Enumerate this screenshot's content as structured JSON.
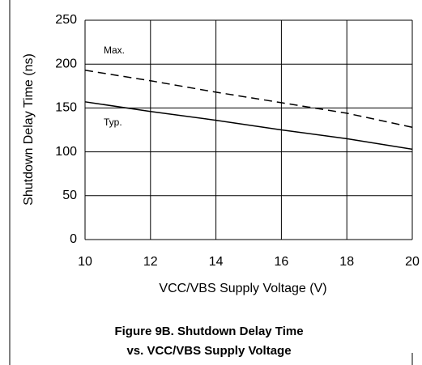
{
  "chart_data": {
    "type": "line",
    "title": "Figure 9B. Shutdown Delay Time",
    "subtitle": "vs. VCC/VBS Supply Voltage",
    "x_label": "VCC/VBS Supply Voltage (V)",
    "y_label": "Shutdown Delay Time (ns)",
    "x": [
      10,
      12,
      14,
      16,
      18,
      20
    ],
    "series": [
      {
        "name": "Max.",
        "color": "#000000",
        "dashed": true,
        "values": [
          193,
          181,
          168,
          156,
          144,
          128
        ]
      },
      {
        "name": "Typ.",
        "color": "#000000",
        "dashed": false,
        "values": [
          157,
          146,
          136,
          125,
          115,
          103
        ]
      }
    ],
    "xlim": [
      10,
      20
    ],
    "xticks": [
      10,
      12,
      14,
      16,
      18,
      20
    ],
    "ylim": [
      0,
      250
    ],
    "yticks": [
      0,
      50,
      100,
      150,
      200,
      250
    ],
    "grid": true
  }
}
